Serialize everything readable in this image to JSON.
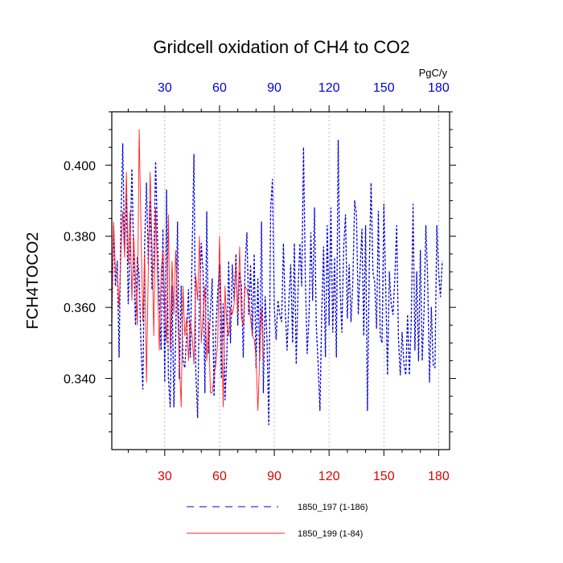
{
  "chart_data": {
    "type": "line",
    "title": "Gridcell oxidation of CH4 to CO2",
    "ylabel": "FCH4TOCO2",
    "top_axis_units": "PgC/y",
    "xlim": [
      1,
      186
    ],
    "ylim": [
      0.32,
      0.415
    ],
    "x_ticks": [
      30,
      60,
      90,
      120,
      150,
      180
    ],
    "x_tick_labels": [
      "30",
      "60",
      "90",
      "120",
      "150",
      "180"
    ],
    "y_ticks": [
      0.34,
      0.36,
      0.38,
      0.4
    ],
    "y_tick_labels": [
      "0.340",
      "0.360",
      "0.380",
      "0.400"
    ],
    "grid": "vertical dotted at x ticks",
    "series": [
      {
        "name": "1850_197 (1-186)",
        "color": "#0000dd",
        "style": "dashed",
        "values": [
          0.356,
          0.383,
          0.366,
          0.373,
          0.346,
          0.384,
          0.406,
          0.376,
          0.392,
          0.361,
          0.376,
          0.399,
          0.374,
          0.355,
          0.374,
          0.369,
          0.349,
          0.337,
          0.378,
          0.395,
          0.372,
          0.39,
          0.365,
          0.373,
          0.401,
          0.38,
          0.362,
          0.348,
          0.382,
          0.339,
          0.393,
          0.34,
          0.332,
          0.366,
          0.332,
          0.352,
          0.384,
          0.34,
          0.366,
          0.345,
          0.343,
          0.352,
          0.365,
          0.346,
          0.376,
          0.403,
          0.342,
          0.329,
          0.362,
          0.378,
          0.37,
          0.336,
          0.387,
          0.347,
          0.359,
          0.368,
          0.335,
          0.354,
          0.364,
          0.372,
          0.34,
          0.361,
          0.334,
          0.346,
          0.373,
          0.35,
          0.372,
          0.362,
          0.375,
          0.355,
          0.37,
          0.366,
          0.346,
          0.372,
          0.381,
          0.358,
          0.372,
          0.352,
          0.375,
          0.343,
          0.368,
          0.345,
          0.384,
          0.336,
          0.363,
          0.351,
          0.327,
          0.388,
          0.396,
          0.36,
          0.351,
          0.362,
          0.358,
          0.356,
          0.378,
          0.359,
          0.348,
          0.362,
          0.372,
          0.35,
          0.378,
          0.344,
          0.365,
          0.378,
          0.366,
          0.405,
          0.368,
          0.347,
          0.357,
          0.381,
          0.362,
          0.388,
          0.355,
          0.344,
          0.331,
          0.359,
          0.377,
          0.346,
          0.383,
          0.355,
          0.388,
          0.353,
          0.374,
          0.346,
          0.407,
          0.366,
          0.353,
          0.377,
          0.386,
          0.357,
          0.372,
          0.356,
          0.367,
          0.39,
          0.386,
          0.358,
          0.371,
          0.382,
          0.352,
          0.383,
          0.331,
          0.371,
          0.395,
          0.37,
          0.367,
          0.354,
          0.387,
          0.352,
          0.35,
          0.389,
          0.366,
          0.341,
          0.37,
          0.361,
          0.358,
          0.368,
          0.383,
          0.351,
          0.341,
          0.353,
          0.344,
          0.341,
          0.358,
          0.341,
          0.356,
          0.389,
          0.348,
          0.37,
          0.345,
          0.376,
          0.345,
          0.359,
          0.383,
          0.368,
          0.339,
          0.36,
          0.344,
          0.343,
          0.383,
          0.37,
          0.363,
          0.373
        ],
        "x_start": 1
      },
      {
        "name": "1850_199 (1-84)",
        "color": "#ff2020",
        "style": "solid",
        "values": [
          0.357,
          0.384,
          0.37,
          0.37,
          0.36,
          0.375,
          0.387,
          0.374,
          0.398,
          0.372,
          0.387,
          0.362,
          0.38,
          0.368,
          0.355,
          0.41,
          0.382,
          0.356,
          0.375,
          0.339,
          0.371,
          0.398,
          0.378,
          0.352,
          0.388,
          0.369,
          0.348,
          0.37,
          0.376,
          0.36,
          0.35,
          0.386,
          0.348,
          0.373,
          0.358,
          0.376,
          0.36,
          0.345,
          0.332,
          0.366,
          0.352,
          0.357,
          0.345,
          0.356,
          0.352,
          0.344,
          0.369,
          0.362,
          0.38,
          0.35,
          0.358,
          0.366,
          0.345,
          0.356,
          0.336,
          0.336,
          0.341,
          0.344,
          0.35,
          0.38,
          0.359,
          0.332,
          0.366,
          0.355,
          0.352,
          0.36,
          0.358,
          0.361,
          0.372,
          0.358,
          0.377,
          0.357,
          0.355,
          0.366,
          0.365,
          0.362,
          0.357,
          0.352,
          0.351,
          0.346,
          0.331,
          0.346,
          0.36,
          0.345
        ],
        "x_start": 1
      }
    ]
  }
}
